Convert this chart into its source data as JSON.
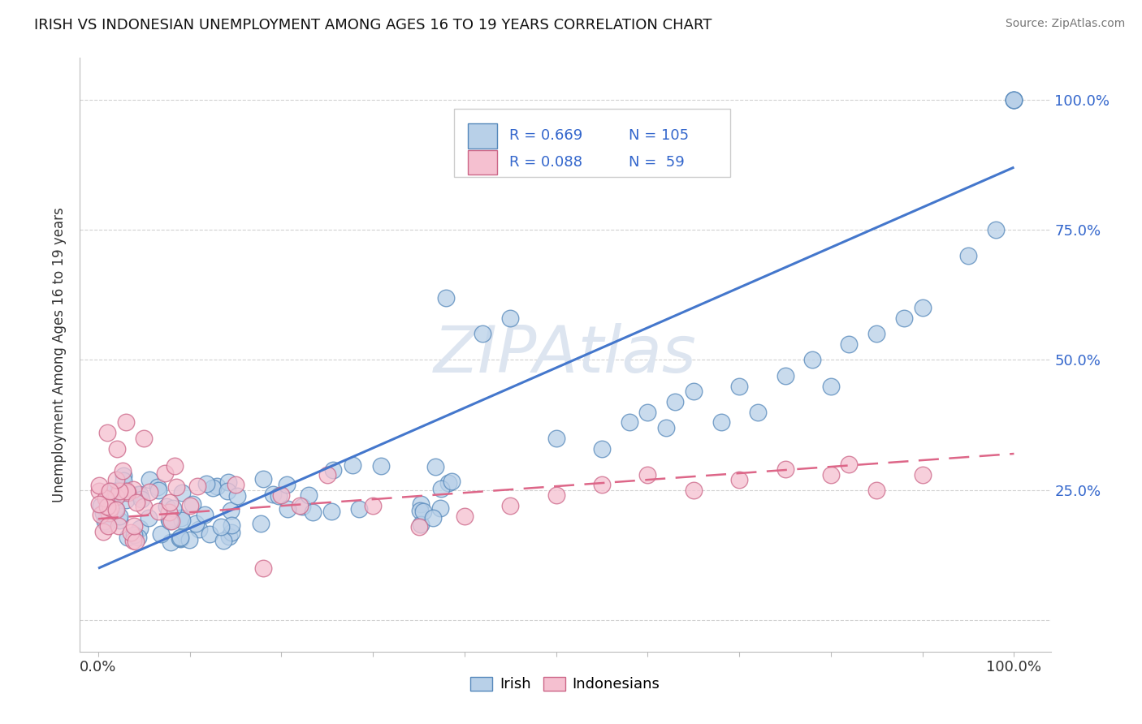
{
  "title": "IRISH VS INDONESIAN UNEMPLOYMENT AMONG AGES 16 TO 19 YEARS CORRELATION CHART",
  "source": "Source: ZipAtlas.com",
  "ylabel": "Unemployment Among Ages 16 to 19 years",
  "irish_color": "#b8d0e8",
  "irish_edge_color": "#5588bb",
  "indonesian_color": "#f5c0d0",
  "indonesian_edge_color": "#cc6688",
  "irish_line_color": "#4477cc",
  "indonesian_line_color": "#dd6688",
  "legend_color": "#3366cc",
  "watermark": "ZIPAtlas",
  "watermark_color": "#dde5f0",
  "irish_R": 0.669,
  "irish_N": 105,
  "indonesian_R": 0.088,
  "indonesian_N": 59,
  "irish_line_x0": 0.0,
  "irish_line_y0": 0.1,
  "irish_line_x1": 1.0,
  "irish_line_y1": 0.87,
  "indo_line_x0": 0.0,
  "indo_line_y0": 0.195,
  "indo_line_x1": 1.0,
  "indo_line_y1": 0.32,
  "ylim_min": -0.06,
  "ylim_max": 1.08,
  "xlim_min": -0.02,
  "xlim_max": 1.04
}
